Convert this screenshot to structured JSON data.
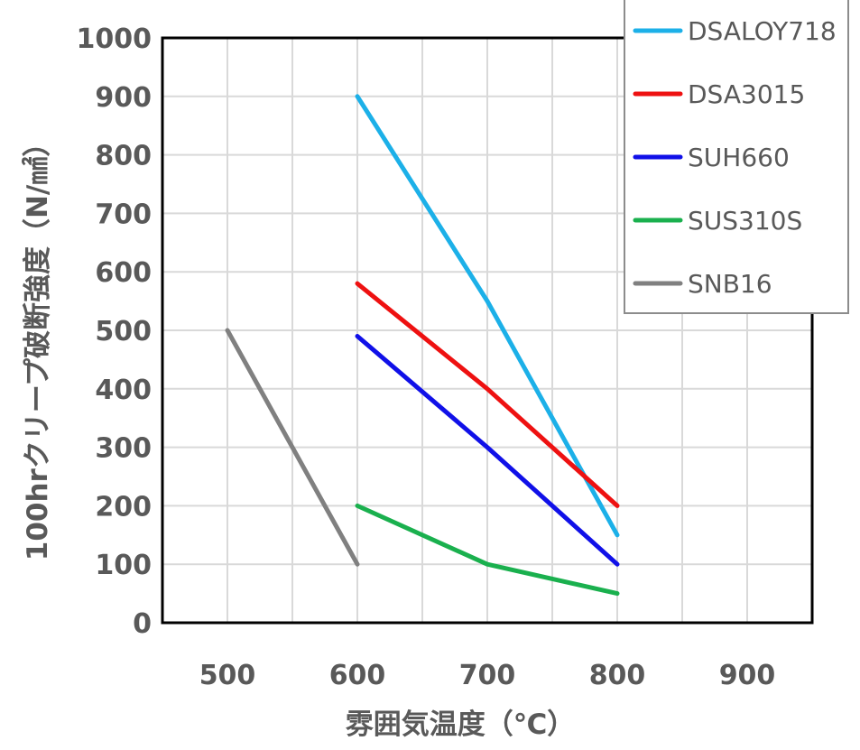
{
  "chart_data": {
    "type": "line",
    "xlabel": "雰囲気温度（℃）",
    "ylabel": "100hrクリープ破断強度（N/㎟）",
    "xlim": [
      450,
      950
    ],
    "ylim": [
      0,
      1000
    ],
    "x_ticks": [
      500,
      600,
      700,
      800,
      900
    ],
    "y_ticks": [
      0,
      100,
      200,
      300,
      400,
      500,
      600,
      700,
      800,
      900,
      1000
    ],
    "x_tick_labels": [
      "500",
      "600",
      "700",
      "800",
      "900"
    ],
    "y_tick_labels": [
      "0",
      "100",
      "200",
      "300",
      "400",
      "500",
      "600",
      "700",
      "800",
      "900",
      "1000"
    ],
    "grid": true,
    "legend_position": "top-right",
    "series": [
      {
        "name": "DSALOY718",
        "color": "#1CB0E8",
        "x": [
          600,
          700,
          800
        ],
        "y": [
          900,
          550,
          150
        ]
      },
      {
        "name": "DSA3015",
        "color": "#EE1111",
        "x": [
          600,
          700,
          800
        ],
        "y": [
          580,
          400,
          200
        ]
      },
      {
        "name": "SUH660",
        "color": "#1010E8",
        "x": [
          600,
          700,
          800
        ],
        "y": [
          490,
          300,
          100
        ]
      },
      {
        "name": "SUS310S",
        "color": "#1AB04E",
        "x": [
          600,
          700,
          800
        ],
        "y": [
          200,
          100,
          50
        ]
      },
      {
        "name": "SNB16",
        "color": "#808080",
        "x": [
          500,
          600
        ],
        "y": [
          500,
          100
        ]
      }
    ]
  }
}
